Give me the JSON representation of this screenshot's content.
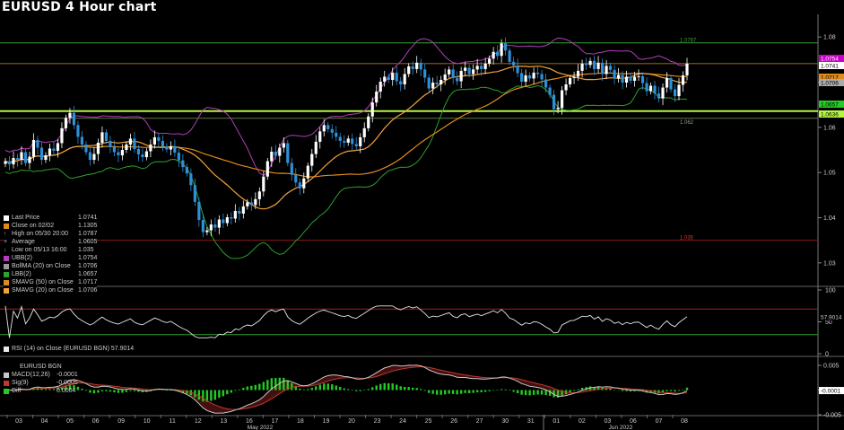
{
  "title": "EURUSD 4 Hour chart",
  "colors": {
    "up": "#ffffff",
    "down": "#2f8fd8",
    "bb_upper": "#b23db8",
    "bb_lower": "#2ea02e",
    "sma20": "#f2a33a",
    "sma50": "#e08a1e",
    "high_line": "#3aa03a",
    "low_line": "#8a1a1a",
    "support": "#b5f542",
    "rsi_line": "#e8e8e8",
    "macd_hist": "#22cc22",
    "macd_line": "#c8c8c8",
    "sig_line": "#c0392b"
  },
  "price_panel": {
    "legend": [
      {
        "label": "Last Price",
        "value": "1.0741",
        "color": "#ffffff",
        "icon": "square"
      },
      {
        "label": "Close on 02/02",
        "value": "1.1305",
        "color": "#e08a1e",
        "icon": "square"
      },
      {
        "label": "High on 05/30 20:00",
        "value": "1.0787",
        "color": "#888888",
        "icon": "up-arrow"
      },
      {
        "label": "Average",
        "value": "1.0605",
        "color": "#888888",
        "icon": "plus"
      },
      {
        "label": "Low on 05/13 16:00",
        "value": "1.035",
        "color": "#888888",
        "icon": "down-arrow"
      },
      {
        "label": "UBB(2)",
        "value": "1.0754",
        "color": "#b23db8",
        "icon": "square"
      },
      {
        "label": "BollMA (20)  on Close",
        "value": "1.0706",
        "color": "#999999",
        "icon": "square"
      },
      {
        "label": "LBB(2)",
        "value": "1.0657",
        "color": "#2ea02e",
        "icon": "square"
      },
      {
        "label": "SMAVG (50)  on Close",
        "value": "1.0717",
        "color": "#e08a1e",
        "icon": "square"
      },
      {
        "label": "SMAVG (20)  on Close",
        "value": "1.0706",
        "color": "#f2a33a",
        "icon": "square"
      }
    ],
    "line_labels": {
      "high": "1.0787",
      "low": "1.035",
      "support": "1.062"
    },
    "right_tags": [
      {
        "value": "1.0754",
        "color": "#c800c8",
        "text_color": "#ffffff"
      },
      {
        "value": "1.0741",
        "color": "#ffffff",
        "text_color": "#000000"
      },
      {
        "value": "1.0717",
        "color": "#e08a1e",
        "text_color": "#000000"
      },
      {
        "value": "1.0706",
        "color": "#aaaaaa",
        "text_color": "#000000"
      },
      {
        "value": "1.0657",
        "color": "#22cc22",
        "text_color": "#000000"
      },
      {
        "value": "1.0636",
        "color": "#b5f542",
        "text_color": "#000000"
      }
    ]
  },
  "rsi_panel": {
    "legend": "RSI (14)  on Close (EURUSD BGN) 57.9014",
    "tag": "57.9014"
  },
  "macd_panel": {
    "legend_title": "EURUSD BGN",
    "legend": [
      {
        "label": "MACD(12,26)",
        "value": "-0.0001",
        "color": "#c8c8c8"
      },
      {
        "label": "Sig(9)",
        "value": "-0.0005",
        "color": "#c0392b"
      },
      {
        "label": "Diff",
        "value": "0.0004",
        "color": "#22cc22"
      }
    ],
    "tag": "-0.0001"
  },
  "x_axis": {
    "day_labels": [
      "03",
      "04",
      "05",
      "06",
      "09",
      "10",
      "11",
      "12",
      "13",
      "16",
      "17",
      "18",
      "19",
      "20",
      "23",
      "24",
      "25",
      "26",
      "27",
      "30",
      "31",
      "01",
      "02",
      "03",
      "06",
      "07",
      "08"
    ],
    "month_labels": [
      "May 2022",
      "Jun 2022"
    ]
  },
  "chart_data": [
    {
      "type": "candlestick",
      "title": "EURUSD 4 Hour chart",
      "ylim": [
        1.025,
        1.085
      ],
      "y_ticks": [
        1.03,
        1.04,
        1.05,
        1.06,
        1.07,
        1.08
      ],
      "x_label": "",
      "x": "4-hour bars, 03 May 2022 to 08 Jun 2022",
      "closes": [
        1.0525,
        1.0518,
        1.0532,
        1.0528,
        1.0545,
        1.0521,
        1.0535,
        1.0572,
        1.0555,
        1.0528,
        1.0538,
        1.0553,
        1.0548,
        1.0565,
        1.0598,
        1.0621,
        1.0632,
        1.0605,
        1.0579,
        1.0562,
        1.0545,
        1.0528,
        1.0541,
        1.0566,
        1.0589,
        1.057,
        1.0556,
        1.0545,
        1.0538,
        1.055,
        1.0562,
        1.0575,
        1.0552,
        1.054,
        1.0534,
        1.0547,
        1.0562,
        1.0578,
        1.057,
        1.0558,
        1.0551,
        1.0558,
        1.0544,
        1.0527,
        1.0512,
        1.0498,
        1.0472,
        1.0435,
        1.0395,
        1.0368,
        1.0372,
        1.0385,
        1.0378,
        1.0396,
        1.0388,
        1.0401,
        1.0398,
        1.0415,
        1.0409,
        1.0425,
        1.0434,
        1.0428,
        1.0441,
        1.0458,
        1.0491,
        1.0525,
        1.0546,
        1.0537,
        1.0555,
        1.0565,
        1.0521,
        1.0495,
        1.0478,
        1.0465,
        1.0487,
        1.0515,
        1.0541,
        1.0568,
        1.0591,
        1.0605,
        1.0596,
        1.0588,
        1.0579,
        1.057,
        1.0566,
        1.0575,
        1.0563,
        1.0558,
        1.0578,
        1.0598,
        1.0624,
        1.0655,
        1.0679,
        1.0701,
        1.0712,
        1.0705,
        1.0721,
        1.0702,
        1.0695,
        1.0718,
        1.0735,
        1.0729,
        1.0743,
        1.0728,
        1.071,
        1.0686,
        1.0699,
        1.0695,
        1.0705,
        1.0717,
        1.0728,
        1.0709,
        1.0702,
        1.0725,
        1.0732,
        1.0718,
        1.0728,
        1.0736,
        1.0729,
        1.0741,
        1.0752,
        1.0767,
        1.0758,
        1.0786,
        1.077,
        1.0745,
        1.0737,
        1.072,
        1.0701,
        1.0715,
        1.0708,
        1.0721,
        1.0718,
        1.0706,
        1.0688,
        1.0672,
        1.064,
        1.0643,
        1.0682,
        1.0695,
        1.0709,
        1.0712,
        1.0725,
        1.0741,
        1.0738,
        1.0747,
        1.0729,
        1.0743,
        1.0718,
        1.0736,
        1.0727,
        1.0708,
        1.0716,
        1.0699,
        1.0712,
        1.0703,
        1.0712,
        1.0713,
        1.0698,
        1.068,
        1.0692,
        1.0675,
        1.0664,
        1.0688,
        1.0709,
        1.0684,
        1.0669,
        1.0694,
        1.0715,
        1.0741
      ],
      "series": [
        {
          "name": "UBB(2)",
          "last": 1.0754
        },
        {
          "name": "BollMA (20)  on Close",
          "last": 1.0706
        },
        {
          "name": "LBB(2)",
          "last": 1.0657
        },
        {
          "name": "SMAVG (50)  on Close",
          "last": 1.0717
        },
        {
          "name": "SMAVG (20)  on Close",
          "last": 1.0706
        }
      ],
      "reference_lines": {
        "high": 1.0787,
        "low": 1.035,
        "support": 1.062,
        "support2": 1.0636,
        "last": 1.0741
      }
    },
    {
      "type": "line",
      "title": "RSI (14)  on Close (EURUSD BGN)",
      "ylim": [
        0,
        100
      ],
      "y_ticks": [
        0,
        50,
        100
      ],
      "reference_lines": [
        70,
        30
      ],
      "last": 57.9014
    },
    {
      "type": "line+bar",
      "title": "MACD",
      "ylim": [
        -0.005,
        0.005
      ],
      "y_ticks": [
        -0.005,
        0,
        0.005
      ],
      "last": {
        "macd": -0.0001,
        "signal": -0.0005,
        "diff": 0.0004
      }
    }
  ]
}
